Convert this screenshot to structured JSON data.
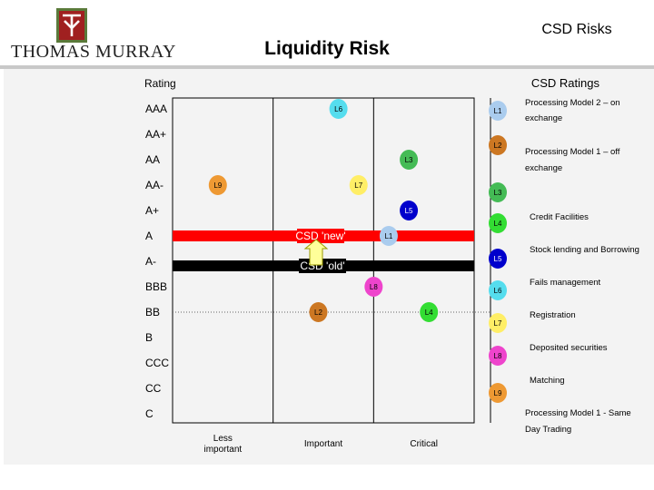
{
  "header": {
    "company": "THOMAS MURRAY",
    "top_title": "CSD Risks",
    "main_title": "Liquidity Risk"
  },
  "colors": {
    "logo_green": "#5a7a3a",
    "logo_red": "#a02020",
    "panel_background": "#f3f3f3"
  },
  "chart_data": {
    "type": "scatter",
    "title": "Liquidity Risk",
    "ylabel": "Rating",
    "right_axis_label": "CSD  Ratings",
    "y_categories": [
      "AAA",
      "AA+",
      "AA",
      "AA-",
      "A+",
      "A",
      "A-",
      "BBB",
      "BB",
      "B",
      "CCC",
      "CC",
      "C"
    ],
    "x_categories": [
      "Less important",
      "Important",
      "Critical"
    ],
    "reference_lines": [
      {
        "label": "CSD 'new'",
        "rating": "A",
        "color": "#ff0000"
      },
      {
        "label": "CSD 'old'",
        "rating": "A-",
        "color": "#000000"
      }
    ],
    "points": [
      {
        "label": "L6",
        "x": 1.65,
        "rating": "AAA",
        "color": "#55ddee"
      },
      {
        "label": "L3",
        "x": 2.35,
        "rating": "AA",
        "color": "#44bb55"
      },
      {
        "label": "L7",
        "x": 1.85,
        "rating": "AA-",
        "color": "#ffee66"
      },
      {
        "label": "L9",
        "x": 0.45,
        "rating": "AA-",
        "color": "#ee9933"
      },
      {
        "label": "L5",
        "x": 2.35,
        "rating": "A+",
        "color": "#0000cc"
      },
      {
        "label": "L1",
        "x": 2.15,
        "rating": "A",
        "color": "#aaccee"
      },
      {
        "label": "L8",
        "x": 2.0,
        "rating": "BBB",
        "color": "#ee44cc"
      },
      {
        "label": "L2",
        "x": 1.45,
        "rating": "BB",
        "color": "#cc7722"
      },
      {
        "label": "L4",
        "x": 2.55,
        "rating": "BB",
        "color": "#33dd33"
      }
    ],
    "legend": [
      {
        "label": "L1",
        "color": "#aaccee",
        "text": "Processing Model 2 – on exchange"
      },
      {
        "label": "L2",
        "color": "#cc7722",
        "text": "Processing Model 1 – off exchange"
      },
      {
        "label": "L3",
        "color": "#44bb55",
        "text": "Credit Facilities"
      },
      {
        "label": "L4",
        "color": "#33dd33",
        "text": "Stock lending and Borrowing"
      },
      {
        "label": "L5",
        "color": "#0000cc",
        "text": "Fails management"
      },
      {
        "label": "L6",
        "color": "#55ddee",
        "text": "Registration"
      },
      {
        "label": "L7",
        "color": "#ffee66",
        "text": "Deposited securities"
      },
      {
        "label": "L8",
        "color": "#ee44cc",
        "text": "Matching"
      },
      {
        "label": "L9",
        "color": "#ee9933",
        "text": "Processing Model 1 - Same Day Trading"
      }
    ],
    "legend_placement": "right"
  }
}
